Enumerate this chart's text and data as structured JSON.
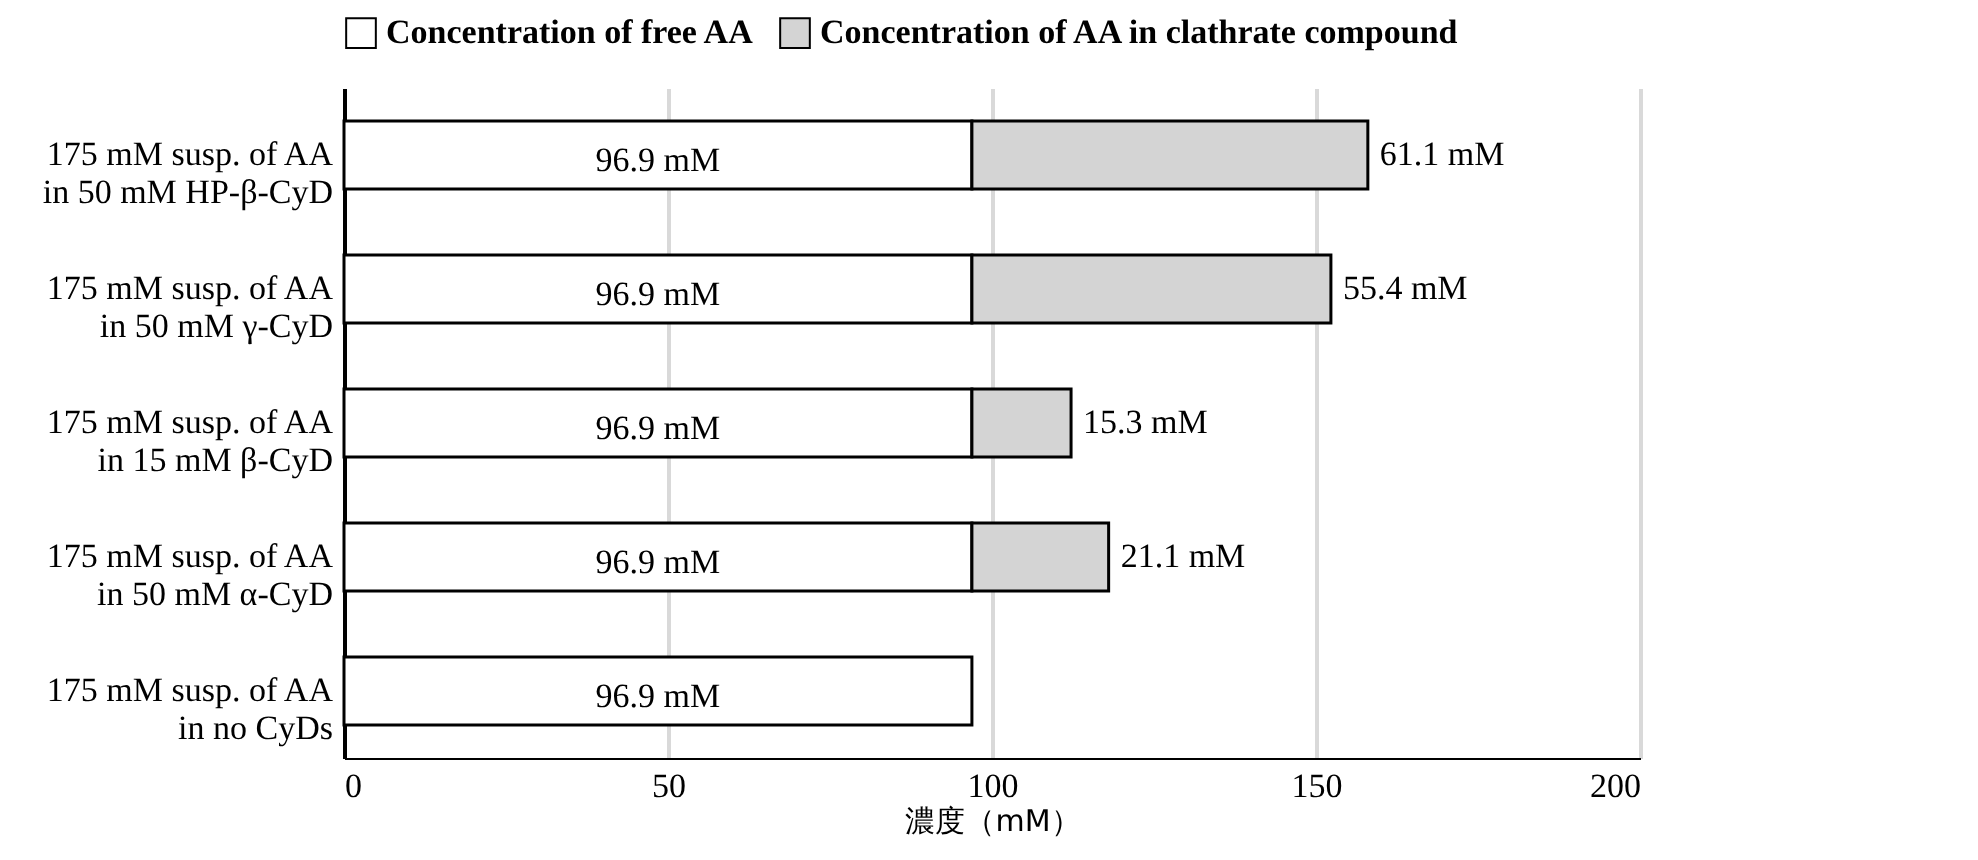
{
  "chart_data": {
    "type": "bar",
    "orientation": "horizontal",
    "stacked": true,
    "xlabel": "濃度（mM）",
    "categories": [
      "175 mM susp. of AA in 50 mM HP-β-CyD",
      "175 mM susp. of AA in 50 mM γ-CyD",
      "175 mM susp. of AA in 15 mM β-CyD",
      "175 mM susp. of AA in 50 mM α-CyD",
      "175 mM susp. of AA in no CyDs"
    ],
    "series": [
      {
        "name": "Concentration of free AA",
        "color": "#ffffff",
        "values": [
          96.9,
          96.9,
          96.9,
          96.9,
          96.9
        ],
        "value_labels": [
          "96.9 mM",
          "96.9 mM",
          "96.9 mM",
          "96.9 mM",
          "96.9 mM"
        ]
      },
      {
        "name": "Concentration of AA in clathrate compound",
        "color": "#d4d4d4",
        "values": [
          61.1,
          55.4,
          15.3,
          21.1,
          null
        ],
        "value_labels": [
          "61.1 mM",
          "55.4 mM",
          "15.3 mM",
          "21.1 mM",
          null
        ]
      }
    ],
    "xlim": [
      0,
      200
    ],
    "xticks": [
      0,
      50,
      100,
      150,
      200
    ],
    "grid": "x",
    "legend": "top"
  }
}
